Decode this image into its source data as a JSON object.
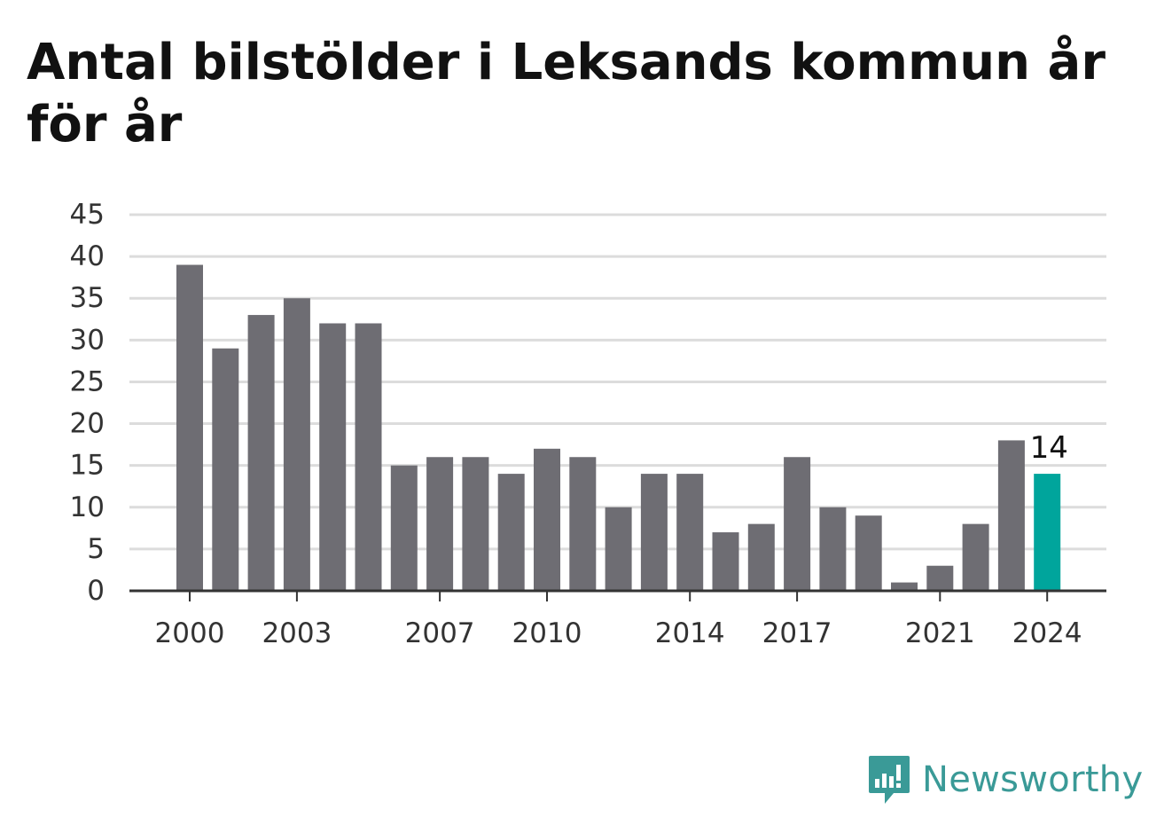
{
  "chart_data": {
    "type": "bar",
    "title": "Antal bilstölder i Leksands kommun år för år",
    "categories": [
      "2000",
      "2001",
      "2002",
      "2003",
      "2004",
      "2005",
      "2006",
      "2007",
      "2008",
      "2009",
      "2010",
      "2011",
      "2012",
      "2013",
      "2014",
      "2015",
      "2016",
      "2017",
      "2018",
      "2019",
      "2020",
      "2021",
      "2022",
      "2023",
      "2024"
    ],
    "x_tick_labels": [
      "2000",
      "2003",
      "2007",
      "2010",
      "2014",
      "2017",
      "2021",
      "2024"
    ],
    "values": [
      39,
      29,
      33,
      35,
      32,
      32,
      15,
      16,
      16,
      14,
      17,
      16,
      10,
      14,
      14,
      7,
      8,
      16,
      10,
      9,
      1,
      3,
      8,
      18,
      14
    ],
    "ylim": [
      0,
      45
    ],
    "y_ticks": [
      0,
      5,
      10,
      15,
      20,
      25,
      30,
      35,
      40,
      45
    ],
    "grid": true,
    "highlight": {
      "category": "2024",
      "label": "14"
    },
    "colors": {
      "bar": "#6e6d73",
      "highlight": "#00a59c",
      "grid": "#dcdcdc",
      "axis": "#333333"
    }
  },
  "logo": {
    "text": "Newsworthy",
    "icon": "newsworthy-logo-icon"
  }
}
